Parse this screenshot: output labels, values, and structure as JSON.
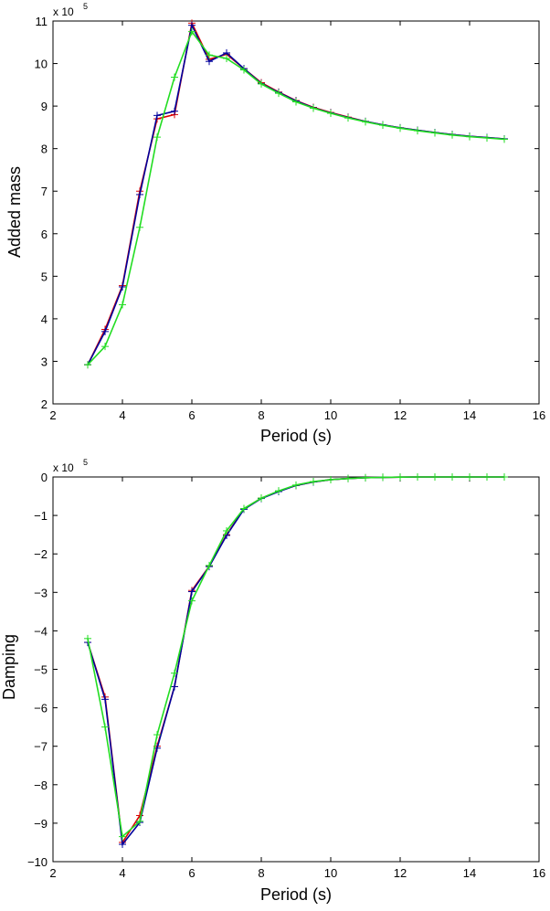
{
  "chart_data": [
    {
      "type": "line",
      "xlabel": "Period (s)",
      "ylabel": "Added mass",
      "exponent_base": "x 10",
      "exponent_power": "5",
      "xlim": [
        2,
        16
      ],
      "ylim": [
        2,
        11
      ],
      "xticks": [
        2,
        4,
        6,
        8,
        10,
        12,
        14,
        16
      ],
      "yticks": [
        2,
        3,
        4,
        5,
        6,
        7,
        8,
        9,
        10,
        11
      ],
      "grid": false,
      "markers": "+",
      "x": [
        3,
        3.5,
        4,
        4.5,
        5,
        5.5,
        6,
        6.5,
        7,
        7.5,
        8,
        8.5,
        9,
        9.5,
        10,
        10.5,
        11,
        11.5,
        12,
        12.5,
        13,
        13.5,
        14,
        14.5,
        15
      ],
      "series": [
        {
          "color": "#dd0000",
          "values": [
            2.92,
            3.75,
            4.78,
            7.0,
            8.7,
            8.8,
            10.95,
            10.1,
            10.22,
            9.88,
            9.55,
            9.33,
            9.13,
            8.97,
            8.85,
            8.74,
            8.64,
            8.56,
            8.49,
            8.43,
            8.38,
            8.33,
            8.29,
            8.26,
            8.23
          ]
        },
        {
          "color": "#00009c",
          "values": [
            2.92,
            3.7,
            4.75,
            6.92,
            8.78,
            8.88,
            10.9,
            10.05,
            10.25,
            9.88,
            9.53,
            9.32,
            9.12,
            8.96,
            8.84,
            8.73,
            8.64,
            8.56,
            8.49,
            8.43,
            8.38,
            8.33,
            8.29,
            8.26,
            8.23
          ]
        },
        {
          "color": "#22dd22",
          "values": [
            2.92,
            3.35,
            4.33,
            6.15,
            8.27,
            9.68,
            10.75,
            10.2,
            10.12,
            9.85,
            9.52,
            9.3,
            9.1,
            8.95,
            8.83,
            8.72,
            8.63,
            8.55,
            8.48,
            8.42,
            8.37,
            8.32,
            8.28,
            8.25,
            8.22
          ]
        }
      ]
    },
    {
      "type": "line",
      "xlabel": "Period (s)",
      "ylabel": "Damping",
      "exponent_base": "x 10",
      "exponent_power": "5",
      "xlim": [
        2,
        16
      ],
      "ylim": [
        -10,
        0
      ],
      "xticks": [
        2,
        4,
        6,
        8,
        10,
        12,
        14,
        16
      ],
      "yticks": [
        0,
        -1,
        -2,
        -3,
        -4,
        -5,
        -6,
        -7,
        -8,
        -9,
        -10
      ],
      "ytick_labels": [
        "0",
        "−1",
        "−2",
        "−3",
        "−4",
        "−5",
        "−6",
        "−7",
        "−8",
        "−9",
        "−10"
      ],
      "grid": false,
      "markers": "+",
      "x": [
        3,
        3.5,
        4,
        4.5,
        5,
        5.5,
        6,
        6.5,
        7,
        7.5,
        8,
        8.5,
        9,
        9.5,
        10,
        10.5,
        11,
        11.5,
        12,
        12.5,
        13,
        13.5,
        14,
        14.5,
        15
      ],
      "series": [
        {
          "color": "#dd0000",
          "values": [
            -4.3,
            -5.72,
            -9.5,
            -8.8,
            -7.0,
            -5.45,
            -2.95,
            -2.32,
            -1.5,
            -0.83,
            -0.55,
            -0.37,
            -0.22,
            -0.13,
            -0.07,
            -0.04,
            -0.02,
            -0.01,
            -0.005,
            0,
            0,
            0,
            0,
            0,
            0
          ]
        },
        {
          "color": "#00009c",
          "values": [
            -4.3,
            -5.78,
            -9.55,
            -8.98,
            -7.05,
            -5.45,
            -2.98,
            -2.33,
            -1.52,
            -0.84,
            -0.56,
            -0.38,
            -0.22,
            -0.13,
            -0.07,
            -0.04,
            -0.02,
            -0.01,
            -0.005,
            0,
            0,
            0,
            0,
            0,
            0
          ]
        },
        {
          "color": "#22dd22",
          "values": [
            -4.2,
            -6.5,
            -9.35,
            -8.95,
            -6.7,
            -5.1,
            -3.22,
            -2.3,
            -1.4,
            -0.82,
            -0.55,
            -0.36,
            -0.21,
            -0.12,
            -0.07,
            -0.04,
            -0.02,
            -0.01,
            -0.005,
            0,
            0,
            0,
            0,
            0,
            0
          ]
        }
      ]
    }
  ]
}
